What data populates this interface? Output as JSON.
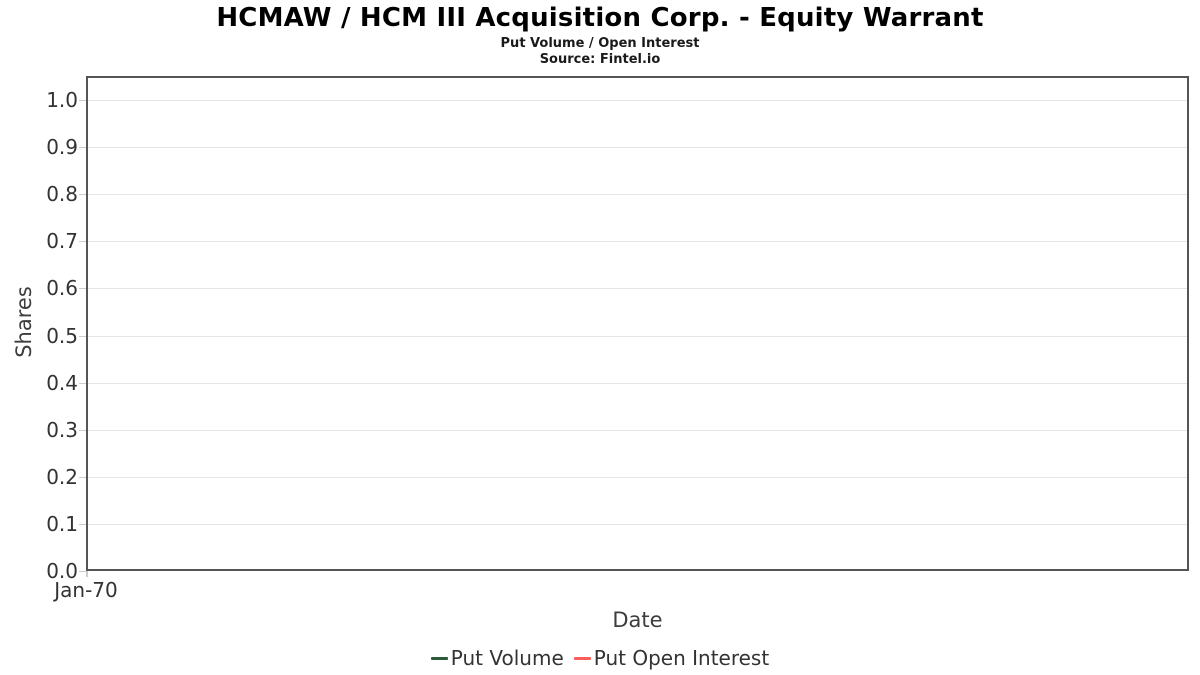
{
  "chart_data": {
    "type": "line",
    "title": "HCMAW / HCM III Acquisition Corp. - Equity Warrant",
    "subtitle": "Put Volume / Open Interest",
    "source": "Source: Fintel.io",
    "xlabel": "Date",
    "ylabel": "Shares",
    "x_ticks": [
      "Jan-70"
    ],
    "y_ticks": [
      "0.0",
      "0.1",
      "0.2",
      "0.3",
      "0.4",
      "0.5",
      "0.6",
      "0.7",
      "0.8",
      "0.9",
      "1.0"
    ],
    "ylim": [
      0.0,
      1.0
    ],
    "grid": "horizontal",
    "legend_position": "bottom",
    "series": [
      {
        "name": "Put Volume",
        "color": "#2d5a3d",
        "values": []
      },
      {
        "name": "Put Open Interest",
        "color": "#f95d5d",
        "values": []
      }
    ]
  }
}
